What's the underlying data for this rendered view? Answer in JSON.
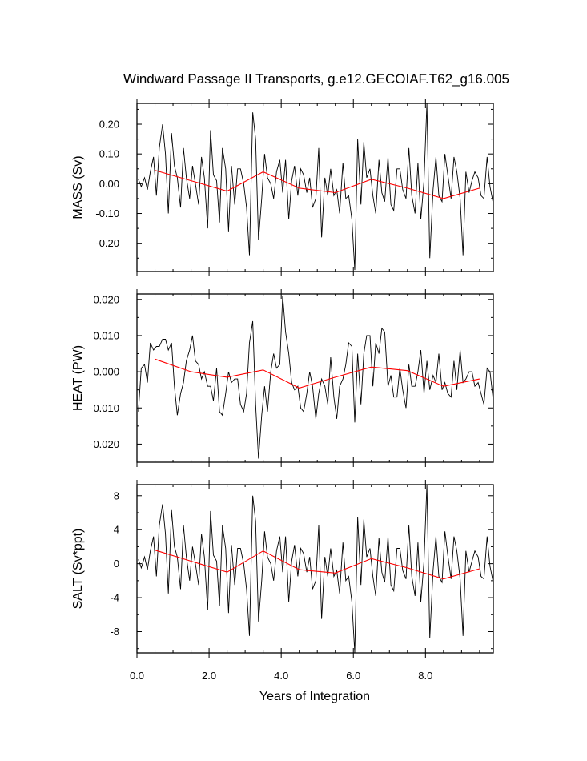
{
  "colors": {
    "series": "#000000",
    "trend": "#ff0000",
    "frame": "#000000",
    "background": "#ffffff"
  },
  "chart_data": {
    "type": "line",
    "title": "Windward Passage II Transports, g.e12.GECOIAF.T62_g16.005",
    "xlabel": "Years of Integration",
    "xlim": [
      0,
      9.88
    ],
    "xticks": [
      0,
      2,
      4,
      6,
      8
    ],
    "xtick_labels": [
      "0.0",
      "2.0",
      "4.0",
      "6.0",
      "8.0"
    ],
    "x": [
      0.04,
      0.12,
      0.21,
      0.29,
      0.37,
      0.46,
      0.54,
      0.62,
      0.71,
      0.79,
      0.87,
      0.96,
      1.04,
      1.12,
      1.21,
      1.29,
      1.37,
      1.46,
      1.54,
      1.62,
      1.71,
      1.79,
      1.87,
      1.96,
      2.04,
      2.12,
      2.21,
      2.29,
      2.37,
      2.46,
      2.54,
      2.62,
      2.71,
      2.79,
      2.87,
      2.96,
      3.04,
      3.12,
      3.21,
      3.29,
      3.37,
      3.46,
      3.54,
      3.62,
      3.71,
      3.79,
      3.87,
      3.96,
      4.04,
      4.12,
      4.21,
      4.29,
      4.37,
      4.46,
      4.54,
      4.62,
      4.71,
      4.79,
      4.87,
      4.96,
      5.04,
      5.12,
      5.21,
      5.29,
      5.37,
      5.46,
      5.54,
      5.62,
      5.71,
      5.79,
      5.87,
      5.96,
      6.04,
      6.12,
      6.21,
      6.29,
      6.37,
      6.46,
      6.54,
      6.62,
      6.71,
      6.79,
      6.87,
      6.96,
      7.04,
      7.12,
      7.21,
      7.29,
      7.37,
      7.46,
      7.54,
      7.62,
      7.71,
      7.79,
      7.87,
      7.96,
      8.04,
      8.12,
      8.21,
      8.29,
      8.37,
      8.46,
      8.54,
      8.62,
      8.71,
      8.79,
      8.87,
      8.96,
      9.04,
      9.12,
      9.21,
      9.29,
      9.37,
      9.46,
      9.54,
      9.62,
      9.71,
      9.79,
      9.87
    ],
    "trend_x": [
      0.5,
      1.5,
      2.5,
      3.5,
      4.5,
      5.5,
      6.5,
      7.5,
      8.5,
      9.5
    ],
    "panels": [
      {
        "ylabel": "MASS (Sv)",
        "ylim": [
          -0.295,
          0.27
        ],
        "yticks": [
          -0.2,
          -0.1,
          0,
          0.1,
          0.2
        ],
        "ytick_labels": [
          "-0.20",
          "-0.10",
          "0.00",
          "0.10",
          "0.20"
        ],
        "series": {
          "name": "MASS",
          "values": [
            0.015,
            -0.01,
            0.02,
            -0.02,
            0.04,
            0.09,
            -0.04,
            0.12,
            0.2,
            0.1,
            -0.1,
            0.17,
            0.06,
            0.02,
            -0.08,
            0.12,
            0.02,
            -0.05,
            0.06,
            0.0,
            -0.07,
            0.09,
            0.02,
            -0.15,
            0.18,
            0.03,
            0.01,
            -0.13,
            0.12,
            0.05,
            -0.16,
            0.06,
            -0.07,
            0.05,
            0.05,
            0.0,
            -0.08,
            -0.24,
            0.24,
            0.15,
            -0.19,
            -0.05,
            0.1,
            0.02,
            0.0,
            -0.05,
            0.04,
            0.08,
            -0.03,
            0.08,
            -0.12,
            0.01,
            0.06,
            -0.04,
            0.05,
            0.03,
            -0.03,
            0.02,
            -0.08,
            -0.05,
            0.12,
            -0.18,
            0.02,
            -0.04,
            0.05,
            -0.04,
            -0.02,
            -0.1,
            0.07,
            -0.05,
            -0.04,
            -0.12,
            -0.29,
            0.15,
            -0.07,
            0.14,
            0.02,
            0.05,
            -0.04,
            -0.1,
            0.08,
            -0.03,
            -0.06,
            0.09,
            -0.07,
            -0.09,
            0.05,
            0.05,
            -0.02,
            -0.05,
            0.12,
            -0.04,
            -0.1,
            0.07,
            -0.12,
            0.01,
            0.27,
            -0.25,
            -0.02,
            0.09,
            -0.04,
            -0.06,
            0.1,
            0.03,
            -0.05,
            0.09,
            0.04,
            -0.05,
            -0.24,
            0.04,
            -0.03,
            0.01,
            0.04,
            0.02,
            -0.04,
            -0.05,
            0.09,
            -0.01,
            -0.06
          ]
        },
        "trend": [
          0.045,
          0.01,
          -0.025,
          0.04,
          -0.015,
          -0.03,
          0.015,
          -0.015,
          -0.05,
          -0.015
        ]
      },
      {
        "ylabel": "HEAT (PW)",
        "ylim": [
          -0.025,
          0.0215
        ],
        "yticks": [
          -0.02,
          -0.01,
          0,
          0.01,
          0.02
        ],
        "ytick_labels": [
          "-0.020",
          "-0.010",
          "0.000",
          "0.010",
          "0.020"
        ],
        "series": {
          "name": "HEAT",
          "values": [
            -0.011,
            0.001,
            0.002,
            -0.003,
            0.008,
            0.006,
            0.007,
            0.007,
            0.009,
            0.009,
            0.006,
            0.008,
            -0.004,
            -0.012,
            -0.006,
            -0.003,
            0.003,
            0.006,
            0.01,
            0.003,
            0.002,
            -0.002,
            0.0,
            -0.004,
            -0.004,
            -0.008,
            0.001,
            -0.011,
            -0.012,
            -0.006,
            0.0,
            -0.003,
            -0.002,
            -0.002,
            -0.009,
            -0.011,
            -0.006,
            0.008,
            0.014,
            -0.009,
            -0.024,
            -0.012,
            -0.004,
            -0.011,
            0.0,
            0.005,
            0.001,
            0.002,
            0.021,
            0.011,
            0.005,
            -0.003,
            -0.005,
            -0.004,
            -0.01,
            -0.011,
            -0.006,
            0.0,
            -0.004,
            -0.013,
            -0.006,
            -0.002,
            -0.004,
            -0.009,
            0.004,
            -0.007,
            -0.013,
            -0.004,
            -0.002,
            0.002,
            0.008,
            0.007,
            -0.014,
            0.005,
            -0.009,
            0.005,
            0.01,
            0.01,
            -0.004,
            0.008,
            0.005,
            0.012,
            0.011,
            -0.004,
            -0.001,
            -0.007,
            -0.007,
            0.001,
            -0.005,
            -0.01,
            0.002,
            -0.004,
            -0.004,
            0.0,
            0.006,
            -0.006,
            0.003,
            -0.005,
            -0.001,
            -0.003,
            0.005,
            -0.005,
            -0.003,
            -0.006,
            -0.007,
            0.003,
            -0.005,
            0.006,
            -0.003,
            -0.002,
            0.0,
            0.0,
            -0.004,
            -0.003,
            -0.006,
            -0.009,
            0.001,
            0.0,
            -0.007
          ]
        },
        "trend": [
          0.0035,
          0.0,
          -0.0015,
          0.0005,
          -0.0045,
          -0.0015,
          0.0013,
          0.0003,
          -0.004,
          -0.002
        ]
      },
      {
        "ylabel": "SALT (Sv*ppt)",
        "ylim": [
          -10.5,
          9.3
        ],
        "yticks": [
          -8,
          -4,
          0,
          4,
          8
        ],
        "ytick_labels": [
          "-8",
          "-4",
          "0",
          "4",
          "8"
        ],
        "series": {
          "name": "SALT",
          "values": [
            0.5,
            -0.5,
            0.8,
            -0.7,
            1.5,
            3.2,
            -1.5,
            4.5,
            7.0,
            3.5,
            -3.5,
            6.3,
            2.0,
            0.8,
            -3.0,
            4.5,
            0.8,
            -2.0,
            2.0,
            0.0,
            -2.5,
            3.5,
            0.8,
            -5.5,
            6.2,
            1.0,
            0.3,
            -5.0,
            4.5,
            1.8,
            -5.8,
            2.2,
            -2.5,
            1.8,
            1.8,
            0.0,
            -3.0,
            -8.5,
            8.0,
            5.0,
            -6.8,
            -2.0,
            3.8,
            0.8,
            0.0,
            -2.0,
            1.5,
            3.2,
            -1.0,
            3.2,
            -4.5,
            0.3,
            2.2,
            -1.5,
            1.8,
            1.2,
            -1.0,
            0.8,
            -3.0,
            -2.0,
            4.5,
            -6.5,
            0.8,
            -1.5,
            1.8,
            -1.5,
            -0.8,
            -3.5,
            2.5,
            -2.0,
            -1.5,
            -4.5,
            -10.5,
            5.5,
            -2.5,
            5.2,
            0.8,
            1.8,
            -1.5,
            -3.8,
            3.0,
            -1.0,
            -2.2,
            3.2,
            -2.5,
            -3.2,
            1.8,
            1.8,
            -0.8,
            -1.8,
            4.5,
            -1.5,
            -3.8,
            2.5,
            -4.5,
            0.3,
            9.3,
            -8.8,
            -0.8,
            3.2,
            -1.5,
            -2.2,
            3.8,
            1.0,
            -1.8,
            3.2,
            1.5,
            -1.8,
            -8.5,
            1.5,
            -1.0,
            0.3,
            1.5,
            0.8,
            -1.5,
            -1.8,
            3.2,
            -0.3,
            -2.0
          ]
        },
        "trend": [
          1.6,
          0.3,
          -1.0,
          1.5,
          -0.7,
          -1.1,
          0.6,
          -0.5,
          -1.8,
          -0.6
        ]
      }
    ]
  }
}
